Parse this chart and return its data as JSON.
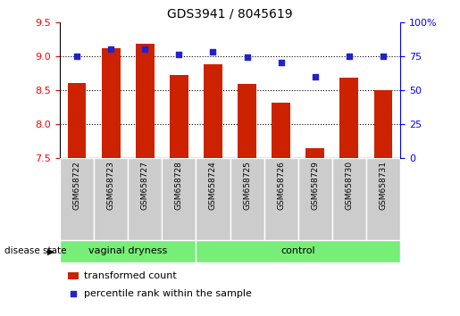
{
  "title": "GDS3941 / 8045619",
  "samples": [
    "GSM658722",
    "GSM658723",
    "GSM658727",
    "GSM658728",
    "GSM658724",
    "GSM658725",
    "GSM658726",
    "GSM658729",
    "GSM658730",
    "GSM658731"
  ],
  "bar_values": [
    8.61,
    9.12,
    9.18,
    8.72,
    8.88,
    8.59,
    8.32,
    7.65,
    8.68,
    8.5
  ],
  "dot_values": [
    75,
    80,
    80,
    76,
    78,
    74,
    70,
    60,
    75,
    75
  ],
  "ylim_left": [
    7.5,
    9.5
  ],
  "ylim_right": [
    0,
    100
  ],
  "yticks_left": [
    7.5,
    8.0,
    8.5,
    9.0,
    9.5
  ],
  "yticks_right": [
    0,
    25,
    50,
    75,
    100
  ],
  "bar_color": "#cc2200",
  "dot_color": "#2222cc",
  "grid_color": "#000000",
  "group1_label": "vaginal dryness",
  "group2_label": "control",
  "group1_count": 4,
  "group2_count": 6,
  "disease_state_label": "disease state",
  "legend_bar_label": "transformed count",
  "legend_dot_label": "percentile rank within the sample",
  "bgcolor_group": "#77ee77",
  "bgcolor_tick": "#cccccc",
  "fig_width": 5.15,
  "fig_height": 3.54,
  "dpi": 100
}
